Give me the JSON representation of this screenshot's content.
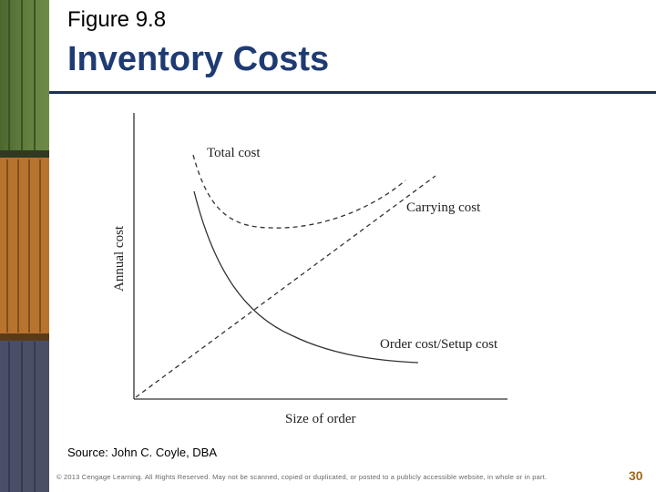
{
  "slide": {
    "label": "Figure 9.8",
    "title": "Inventory Costs",
    "source": "Source: John C. Coyle, DBA",
    "copyright": "© 2013 Cengage Learning. All Rights Reserved. May not be scanned, copied or duplicated, or posted to a publicly accessible website, in whole or in part.",
    "page_number": "30"
  },
  "diagram": {
    "ylabel": "Annual cost",
    "xlabel": "Size of order",
    "curves": {
      "total": "Total cost",
      "carrying": "Carrying cost",
      "order": "Order cost/Setup cost"
    }
  },
  "colors": {
    "title": "#1f3b73",
    "rule": "#1f2d5a",
    "page_number": "#a0691b"
  }
}
